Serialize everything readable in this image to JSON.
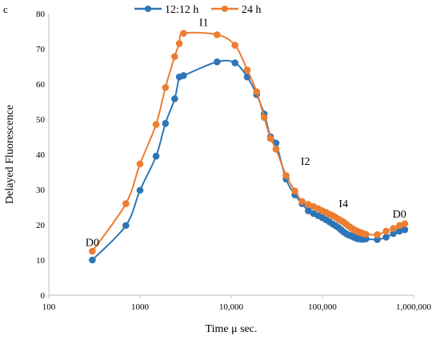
{
  "chart_data": {
    "type": "line",
    "panel_label": "c",
    "xlabel": "Time μ sec.",
    "ylabel": "Delayed Fluorescence",
    "xscale": "log",
    "xlim": [
      100,
      1000000
    ],
    "ylim": [
      0,
      80
    ],
    "x_ticks": [
      100,
      1000,
      10000,
      100000,
      1000000
    ],
    "x_tick_labels": [
      "100",
      "1000",
      "10,000",
      "100,000",
      "1,000,000"
    ],
    "y_ticks": [
      0,
      10,
      20,
      30,
      40,
      50,
      60,
      70,
      80
    ],
    "y_tick_labels": [
      "0",
      "10",
      "20",
      "30",
      "40",
      "50",
      "60",
      "70",
      "80"
    ],
    "grid": false,
    "legend_position": "top",
    "series": [
      {
        "name": "12:12 h",
        "color": "#2e75b6",
        "points": [
          [
            300,
            10
          ],
          [
            700,
            19.8
          ],
          [
            1000,
            29.8
          ],
          [
            1500,
            39.5
          ],
          [
            1900,
            48.8
          ],
          [
            2400,
            55.8
          ],
          [
            2700,
            62
          ],
          [
            3000,
            62.4
          ],
          [
            7000,
            66.3
          ],
          [
            11000,
            66
          ],
          [
            15000,
            62
          ],
          [
            19000,
            57
          ],
          [
            23000,
            51.5
          ],
          [
            27000,
            45
          ],
          [
            31000,
            43.2
          ],
          [
            40000,
            33
          ],
          [
            50000,
            28.5
          ],
          [
            60000,
            26
          ],
          [
            70000,
            24
          ],
          [
            80000,
            23.2
          ],
          [
            90000,
            22.6
          ],
          [
            100000,
            22
          ],
          [
            110000,
            21.4
          ],
          [
            120000,
            20.8
          ],
          [
            130000,
            20.2
          ],
          [
            140000,
            19.7
          ],
          [
            150000,
            19.2
          ],
          [
            160000,
            18.6
          ],
          [
            170000,
            18
          ],
          [
            180000,
            17.6
          ],
          [
            190000,
            17.2
          ],
          [
            200000,
            17
          ],
          [
            210000,
            16.8
          ],
          [
            220000,
            16.5
          ],
          [
            230000,
            16.3
          ],
          [
            240000,
            16.1
          ],
          [
            250000,
            16
          ],
          [
            260000,
            16
          ],
          [
            270000,
            15.9
          ],
          [
            280000,
            15.9
          ],
          [
            300000,
            16
          ],
          [
            400000,
            15.8
          ],
          [
            500000,
            16.5
          ],
          [
            600000,
            17.5
          ],
          [
            700000,
            18.2
          ],
          [
            800000,
            18.6
          ]
        ]
      },
      {
        "name": "24 h",
        "color": "#ed7d31",
        "points": [
          [
            300,
            12.5
          ],
          [
            700,
            26
          ],
          [
            1000,
            37.3
          ],
          [
            1500,
            48.5
          ],
          [
            1900,
            59
          ],
          [
            2400,
            67.8
          ],
          [
            2700,
            71.5
          ],
          [
            3000,
            74.4
          ],
          [
            7000,
            74
          ],
          [
            11000,
            71
          ],
          [
            15000,
            64
          ],
          [
            19000,
            57.8
          ],
          [
            23000,
            50.5
          ],
          [
            27000,
            44.5
          ],
          [
            31000,
            41.5
          ],
          [
            40000,
            34
          ],
          [
            50000,
            29.6
          ],
          [
            60000,
            26.6
          ],
          [
            70000,
            25.8
          ],
          [
            80000,
            25.2
          ],
          [
            90000,
            24.6
          ],
          [
            100000,
            24
          ],
          [
            110000,
            23.5
          ],
          [
            120000,
            23
          ],
          [
            130000,
            22.6
          ],
          [
            140000,
            22.1
          ],
          [
            150000,
            21.6
          ],
          [
            160000,
            21.2
          ],
          [
            170000,
            20.8
          ],
          [
            180000,
            20.3
          ],
          [
            190000,
            19.8
          ],
          [
            200000,
            19.4
          ],
          [
            210000,
            19
          ],
          [
            220000,
            18.7
          ],
          [
            230000,
            18.4
          ],
          [
            240000,
            18.2
          ],
          [
            250000,
            18
          ],
          [
            260000,
            17.8
          ],
          [
            270000,
            17.7
          ],
          [
            280000,
            17.5
          ],
          [
            300000,
            17.3
          ],
          [
            400000,
            17.2
          ],
          [
            500000,
            18.2
          ],
          [
            600000,
            19
          ],
          [
            700000,
            19.8
          ],
          [
            800000,
            20.3
          ]
        ]
      }
    ],
    "annotations": [
      {
        "text": "D0",
        "x": 300,
        "y": 14
      },
      {
        "text": "I1",
        "x": 5000,
        "y": 76.5
      },
      {
        "text": "I2",
        "x": 65000,
        "y": 37
      },
      {
        "text": "I4",
        "x": 170000,
        "y": 25
      },
      {
        "text": "D0",
        "x": 700000,
        "y": 22
      }
    ]
  }
}
